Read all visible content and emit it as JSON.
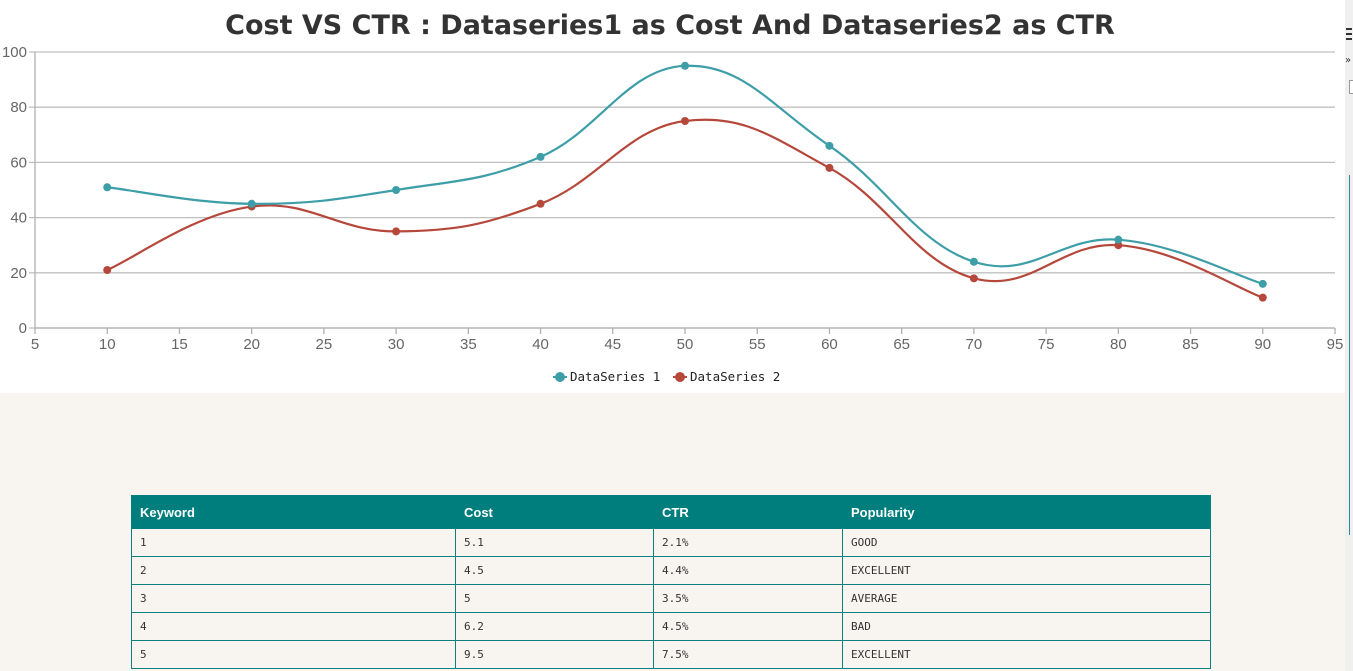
{
  "chart_data": {
    "type": "line",
    "title": "Cost VS CTR : Dataseries1 as Cost And Dataseries2 as CTR",
    "xlabel": "",
    "ylabel": "",
    "xlim": [
      5,
      95
    ],
    "ylim": [
      0,
      100
    ],
    "x_ticks": [
      "5",
      "10",
      "15",
      "20",
      "25",
      "30",
      "35",
      "40",
      "45",
      "50",
      "55",
      "60",
      "65",
      "70",
      "75",
      "80",
      "85",
      "90",
      "95"
    ],
    "y_ticks": [
      "0",
      "20",
      "40",
      "60",
      "80",
      "100"
    ],
    "grid": "horizontal",
    "legend_position": "bottom-center",
    "series": [
      {
        "name": "DataSeries 1",
        "color": "#3d9ea8",
        "x": [
          10,
          20,
          30,
          40,
          50,
          60,
          70,
          80,
          90
        ],
        "y": [
          51,
          45,
          50,
          62,
          95,
          66,
          24,
          32,
          16
        ]
      },
      {
        "name": "DataSeries 2",
        "color": "#b5483b",
        "x": [
          10,
          20,
          30,
          40,
          50,
          60,
          70,
          80,
          90
        ],
        "y": [
          21,
          44,
          35,
          45,
          75,
          58,
          18,
          30,
          11
        ]
      }
    ]
  },
  "table": {
    "headers": [
      "Keyword",
      "Cost",
      "CTR",
      "Popularity"
    ],
    "rows": [
      [
        "1",
        "5.1",
        "2.1%",
        "GOOD"
      ],
      [
        "2",
        "4.5",
        "4.4%",
        "EXCELLENT"
      ],
      [
        "3",
        "5",
        "3.5%",
        "AVERAGE"
      ],
      [
        "4",
        "6.2",
        "4.5%",
        "BAD"
      ],
      [
        "5",
        "9.5",
        "7.5%",
        "EXCELLENT"
      ]
    ]
  }
}
